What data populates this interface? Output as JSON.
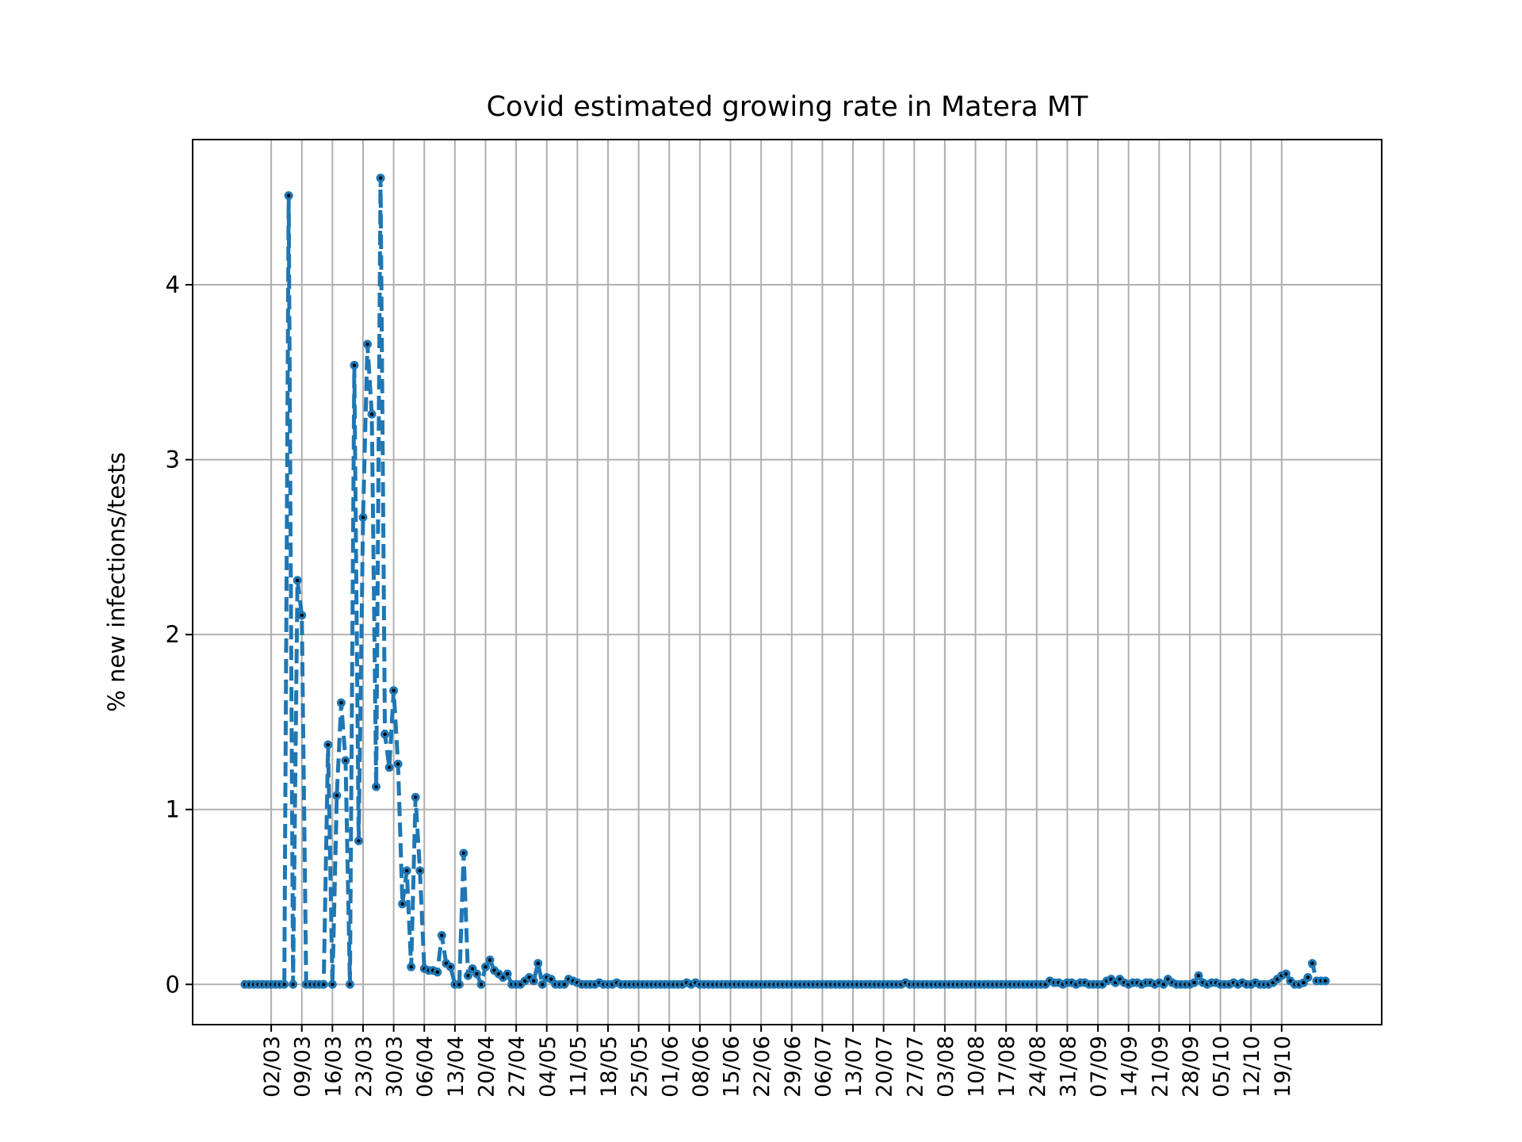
{
  "chart_data": {
    "type": "line",
    "title": "Covid estimated growing rate in Matera MT",
    "xlabel": "",
    "ylabel": "% new infections/tests",
    "ylim": [
      -0.23,
      4.83
    ],
    "y_ticks": [
      0,
      1,
      2,
      3,
      4
    ],
    "x_ticks": [
      "02/03",
      "09/03",
      "16/03",
      "23/03",
      "30/03",
      "06/04",
      "13/04",
      "20/04",
      "27/04",
      "04/05",
      "11/05",
      "18/05",
      "25/05",
      "01/06",
      "08/06",
      "15/06",
      "22/06",
      "29/06",
      "06/07",
      "13/07",
      "20/07",
      "27/07",
      "03/08",
      "10/08",
      "17/08",
      "24/08",
      "31/08",
      "07/09",
      "14/09",
      "21/09",
      "28/09",
      "05/10",
      "12/10",
      "19/10"
    ],
    "x_ticks_start_day": 6,
    "x_ticks_step_days": 7,
    "grid": true,
    "colors": {
      "line": "#1f77b4",
      "marker_center": "#000000",
      "grid": "#b0b0b0"
    },
    "series": [
      {
        "name": "",
        "start_date": "24/02",
        "step_days": 1,
        "line_style": "dashed",
        "values": [
          0,
          0,
          0,
          0,
          0,
          0,
          0,
          0,
          0,
          0,
          4.51,
          0,
          2.31,
          2.11,
          0,
          0,
          0,
          0,
          0,
          1.37,
          0,
          1.08,
          1.61,
          1.28,
          0,
          3.54,
          0.82,
          2.67,
          3.66,
          3.26,
          1.13,
          4.61,
          1.43,
          1.24,
          1.68,
          1.26,
          0.46,
          0.65,
          0.1,
          1.07,
          0.65,
          0.09,
          0.08,
          0.08,
          0.07,
          0.28,
          0.12,
          0.1,
          0,
          0,
          0.75,
          0.05,
          0.09,
          0.06,
          0,
          0.1,
          0.14,
          0.08,
          0.06,
          0.04,
          0.06,
          0,
          0,
          0,
          0.02,
          0.04,
          0.02,
          0.12,
          0,
          0.04,
          0.03,
          0,
          0,
          0,
          0.03,
          0.02,
          0.01,
          0,
          0,
          0,
          0,
          0.01,
          0,
          0,
          0,
          0.01,
          0,
          0,
          0,
          0,
          0,
          0,
          0,
          0,
          0,
          0,
          0,
          0,
          0,
          0,
          0,
          0.01,
          0,
          0.01,
          0,
          0,
          0,
          0,
          0,
          0,
          0,
          0,
          0,
          0,
          0,
          0,
          0,
          0,
          0,
          0,
          0,
          0,
          0,
          0,
          0,
          0,
          0,
          0,
          0,
          0,
          0,
          0,
          0,
          0,
          0,
          0,
          0,
          0,
          0,
          0,
          0,
          0,
          0,
          0,
          0,
          0,
          0,
          0,
          0,
          0,
          0,
          0.01,
          0,
          0,
          0,
          0,
          0,
          0,
          0,
          0,
          0,
          0,
          0,
          0,
          0,
          0,
          0,
          0,
          0,
          0,
          0,
          0,
          0,
          0,
          0,
          0,
          0,
          0,
          0,
          0,
          0,
          0,
          0,
          0,
          0.02,
          0.01,
          0.01,
          0,
          0.01,
          0.01,
          0,
          0.01,
          0.01,
          0,
          0,
          0,
          0,
          0.02,
          0.03,
          0.01,
          0.03,
          0.01,
          0,
          0.01,
          0.01,
          0,
          0.01,
          0.01,
          0,
          0.01,
          0,
          0.03,
          0.01,
          0,
          0,
          0,
          0,
          0.01,
          0.05,
          0.01,
          0,
          0.01,
          0.01,
          0,
          0,
          0,
          0.01,
          0,
          0.01,
          0,
          0,
          0.01,
          0,
          0,
          0,
          0.01,
          0.03,
          0.05,
          0.06,
          0.02,
          0,
          0,
          0.01,
          0.04,
          0.12,
          0.02,
          0.02,
          0.02
        ]
      }
    ]
  }
}
